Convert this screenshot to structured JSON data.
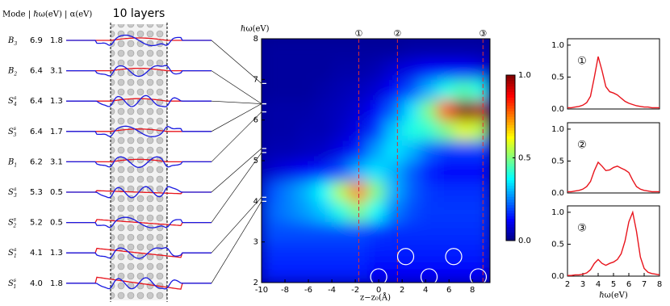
{
  "mode_panel": {
    "header": "Mode | ℏω(eV) | α(eV)",
    "title": "10 layers",
    "modes": [
      {
        "symbol": "B",
        "sub": "3",
        "energy": {
          "value": 6.9,
          "label": "6.9"
        },
        "alpha": "1.8"
      },
      {
        "symbol": "B",
        "sub": "2",
        "energy": {
          "value": 6.4,
          "label": "6.4"
        },
        "alpha": "3.1"
      },
      {
        "symbol": "S",
        "sub": "4",
        "sup": "a",
        "energy": {
          "value": 6.4,
          "label": "6.4"
        },
        "alpha": "1.3"
      },
      {
        "symbol": "S",
        "sub": "3",
        "sup": "s",
        "energy": {
          "value": 6.4,
          "label": "6.4"
        },
        "alpha": "1.7"
      },
      {
        "symbol": "B",
        "sub": "1",
        "energy": {
          "value": 6.2,
          "label": "6.2"
        },
        "alpha": "3.1"
      },
      {
        "symbol": "S",
        "sub": "3",
        "sup": "a",
        "energy": {
          "value": 5.3,
          "label": "5.3"
        },
        "alpha": "0.5"
      },
      {
        "symbol": "S",
        "sub": "2",
        "sup": "s",
        "energy": {
          "value": 5.2,
          "label": "5.2"
        },
        "alpha": "0.5"
      },
      {
        "symbol": "S",
        "sub": "1",
        "sup": "a",
        "energy": {
          "value": 4.1,
          "label": "4.1"
        },
        "alpha": "1.3"
      },
      {
        "symbol": "S",
        "sub": "1",
        "sup": "s",
        "energy": {
          "value": 4.0,
          "label": "4.0"
        },
        "alpha": "1.8"
      }
    ]
  },
  "chart_data": [
    {
      "type": "heatmap",
      "xlabel": "z−z₀(Å)",
      "ylabel": "ℏω(eV)",
      "xlim": [
        -10,
        9.5
      ],
      "ylim": [
        2,
        8
      ],
      "xticks": [
        -10,
        -8,
        -6,
        -4,
        -2,
        0,
        2,
        4,
        6,
        8
      ],
      "yticks": [
        2,
        3,
        4,
        5,
        6,
        7,
        8
      ],
      "xbins": [
        -10,
        -8.5,
        -7,
        -5.5,
        -4,
        -2.5,
        -1,
        0.5,
        2,
        3.5,
        5,
        6.5,
        8,
        9.5
      ],
      "ybins": [
        2,
        2.5,
        3,
        3.5,
        4,
        4.5,
        5,
        5.5,
        6,
        6.5,
        7,
        7.5,
        8
      ],
      "z": [
        [
          0.15,
          0.15,
          0.15,
          0.15,
          0.15,
          0.15,
          0.12,
          0.12,
          0.12,
          0.12,
          0.12,
          0.12,
          0.12
        ],
        [
          0.17,
          0.17,
          0.17,
          0.17,
          0.17,
          0.17,
          0.15,
          0.15,
          0.15,
          0.15,
          0.15,
          0.15,
          0.15
        ],
        [
          0.2,
          0.2,
          0.2,
          0.2,
          0.2,
          0.2,
          0.18,
          0.17,
          0.17,
          0.17,
          0.17,
          0.17,
          0.17
        ],
        [
          0.22,
          0.25,
          0.28,
          0.32,
          0.4,
          0.5,
          0.38,
          0.25,
          0.2,
          0.18,
          0.18,
          0.18,
          0.18
        ],
        [
          0.2,
          0.25,
          0.3,
          0.38,
          0.55,
          0.75,
          0.5,
          0.3,
          0.22,
          0.18,
          0.17,
          0.17,
          0.17
        ],
        [
          0.08,
          0.1,
          0.12,
          0.15,
          0.2,
          0.3,
          0.35,
          0.3,
          0.22,
          0.15,
          0.12,
          0.12,
          0.12
        ],
        [
          0.05,
          0.05,
          0.06,
          0.07,
          0.1,
          0.15,
          0.28,
          0.35,
          0.3,
          0.22,
          0.18,
          0.18,
          0.18
        ],
        [
          0.04,
          0.04,
          0.05,
          0.05,
          0.07,
          0.1,
          0.18,
          0.32,
          0.4,
          0.42,
          0.5,
          0.6,
          0.55
        ],
        [
          0.04,
          0.04,
          0.04,
          0.05,
          0.06,
          0.08,
          0.12,
          0.22,
          0.35,
          0.5,
          0.8,
          1.0,
          0.95
        ],
        [
          0.03,
          0.03,
          0.03,
          0.04,
          0.05,
          0.06,
          0.08,
          0.12,
          0.2,
          0.3,
          0.4,
          0.45,
          0.4
        ],
        [
          0.03,
          0.03,
          0.03,
          0.03,
          0.04,
          0.04,
          0.05,
          0.08,
          0.1,
          0.12,
          0.12,
          0.12,
          0.1
        ],
        [
          0.03,
          0.03,
          0.03,
          0.03,
          0.03,
          0.03,
          0.03,
          0.03,
          0.04,
          0.04,
          0.04,
          0.04,
          0.04
        ]
      ],
      "zlim": [
        0,
        1
      ],
      "zticks": [
        {
          "value": 0,
          "label": "0.0"
        },
        {
          "value": 0.5,
          "label": "0.5"
        },
        {
          "value": 1,
          "label": "1.0"
        }
      ],
      "markers": [
        {
          "x": -1.7,
          "label": "①"
        },
        {
          "x": 1.6,
          "label": "②"
        },
        {
          "x": 8.9,
          "label": "③"
        }
      ],
      "marker_color": "#e03030",
      "atoms": {
        "x": [
          0,
          2.3,
          4.3,
          6.4,
          8.5
        ],
        "y": [
          2.14,
          2.64,
          2.14,
          2.64,
          2.14
        ]
      }
    },
    {
      "type": "line",
      "annotation": "①",
      "x": [
        2,
        2.25,
        2.5,
        2.75,
        3,
        3.25,
        3.5,
        3.75,
        4,
        4.25,
        4.5,
        4.75,
        5,
        5.25,
        5.5,
        5.75,
        6,
        6.25,
        6.5,
        6.75,
        7,
        7.25,
        7.5,
        7.75,
        8
      ],
      "series": [
        {
          "color": "#e8141c",
          "values": [
            0.02,
            0.02,
            0.03,
            0.04,
            0.06,
            0.1,
            0.2,
            0.5,
            0.82,
            0.6,
            0.35,
            0.27,
            0.25,
            0.22,
            0.17,
            0.12,
            0.09,
            0.07,
            0.05,
            0.04,
            0.03,
            0.03,
            0.02,
            0.02,
            0.02
          ]
        }
      ],
      "xlim": [
        2,
        8
      ],
      "ylim": [
        0,
        1.1
      ],
      "yticks": [
        {
          "value": 0,
          "label": "0.0"
        },
        {
          "value": 0.5,
          "label": "0.5"
        },
        {
          "value": 1,
          "label": "1.0"
        }
      ]
    },
    {
      "type": "line",
      "annotation": "②",
      "x": [
        2,
        2.25,
        2.5,
        2.75,
        3,
        3.25,
        3.5,
        3.75,
        4,
        4.25,
        4.5,
        4.75,
        5,
        5.25,
        5.5,
        5.75,
        6,
        6.25,
        6.5,
        6.75,
        7,
        7.25,
        7.5,
        7.75,
        8
      ],
      "series": [
        {
          "color": "#e8141c",
          "values": [
            0.02,
            0.02,
            0.03,
            0.04,
            0.06,
            0.1,
            0.18,
            0.35,
            0.48,
            0.42,
            0.35,
            0.36,
            0.4,
            0.42,
            0.39,
            0.36,
            0.32,
            0.2,
            0.1,
            0.06,
            0.04,
            0.03,
            0.02,
            0.02,
            0.02
          ]
        }
      ],
      "xlim": [
        2,
        8
      ],
      "ylim": [
        0,
        1.1
      ],
      "yticks": [
        {
          "value": 0,
          "label": "0.0"
        },
        {
          "value": 0.5,
          "label": "0.5"
        },
        {
          "value": 1,
          "label": "1.0"
        }
      ]
    },
    {
      "type": "line",
      "annotation": "③",
      "xlabel": "ℏω(eV)",
      "x": [
        2,
        2.25,
        2.5,
        2.75,
        3,
        3.25,
        3.5,
        3.75,
        4,
        4.25,
        4.5,
        4.75,
        5,
        5.25,
        5.5,
        5.75,
        6,
        6.25,
        6.5,
        6.75,
        7,
        7.25,
        7.5,
        7.75,
        8
      ],
      "series": [
        {
          "color": "#e8141c",
          "values": [
            0.01,
            0.01,
            0.02,
            0.02,
            0.03,
            0.05,
            0.1,
            0.2,
            0.26,
            0.2,
            0.17,
            0.2,
            0.22,
            0.26,
            0.35,
            0.55,
            0.85,
            1.0,
            0.7,
            0.3,
            0.12,
            0.06,
            0.04,
            0.03,
            0.02
          ]
        }
      ],
      "xlim": [
        2,
        8
      ],
      "ylim": [
        0,
        1.1
      ],
      "xticks": [
        2,
        3,
        4,
        5,
        6,
        7,
        8
      ],
      "yticks": [
        {
          "value": 0,
          "label": "0.0"
        },
        {
          "value": 0.5,
          "label": "0.5"
        },
        {
          "value": 1,
          "label": "1.0"
        }
      ]
    }
  ]
}
